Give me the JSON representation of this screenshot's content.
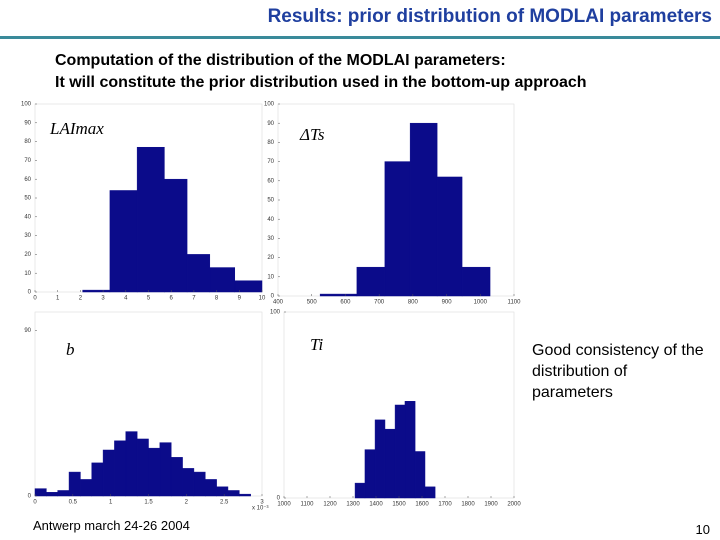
{
  "slide": {
    "title": "Results: prior distribution of MODLAI parameters",
    "subtitle_lines": [
      "Computation of the distribution of the MODLAI parameters:",
      "It will constitute the prior distribution used in the bottom-up approach"
    ],
    "note": "Good consistency of the distribution of parameters",
    "footer": "Antwerp march 24-26 2004",
    "page_number": "10"
  },
  "chart_data": [
    {
      "type": "histogram",
      "annotation": "LAImax",
      "color": "#0b0b8a",
      "bins": [
        2.1,
        3.3,
        4.5,
        5.7,
        6.7,
        7.7,
        8.8,
        10
      ],
      "values": [
        1,
        54,
        77,
        60,
        20,
        13,
        6
      ],
      "xlim": [
        0,
        10
      ],
      "xticks": [
        0,
        1,
        2,
        3,
        4,
        5,
        6,
        7,
        8,
        9,
        10
      ],
      "ylim": [
        0,
        100
      ],
      "yticks": [
        0,
        10,
        20,
        30,
        40,
        50,
        60,
        70,
        80,
        90,
        100
      ]
    },
    {
      "type": "histogram",
      "annotation": "ΔTs",
      "color": "#0b0b8a",
      "bins": [
        525,
        634,
        717,
        792,
        872,
        946,
        1029
      ],
      "values": [
        1,
        15,
        70,
        90,
        62,
        15
      ],
      "xlim": [
        400,
        1100
      ],
      "xticks": [
        400,
        500,
        600,
        700,
        800,
        900,
        1000,
        1100
      ],
      "ylim": [
        0,
        100
      ],
      "yticks": [
        0,
        10,
        20,
        30,
        40,
        50,
        60,
        70,
        80,
        90,
        100
      ]
    },
    {
      "type": "histogram",
      "annotation": "b",
      "color": "#0b0b8a",
      "x_scale_label": "x 10⁻³",
      "bins": [
        0,
        0.15,
        0.3,
        0.45,
        0.6,
        0.75,
        0.9,
        1.05,
        1.2,
        1.35,
        1.5,
        1.65,
        1.8,
        1.95,
        2.1,
        2.25,
        2.4,
        2.55,
        2.7,
        2.85
      ],
      "values": [
        4,
        2,
        3,
        13,
        9,
        18,
        25,
        30,
        35,
        31,
        26,
        29,
        21,
        15,
        13,
        9,
        5,
        3,
        1
      ],
      "xlim": [
        0,
        3
      ],
      "xticks": [
        0,
        0.5,
        1,
        1.5,
        2,
        2.5,
        3
      ],
      "ylim": [
        0,
        100
      ],
      "yticks": [
        0,
        90
      ]
    },
    {
      "type": "histogram",
      "annotation": "Ti",
      "color": "#0b0b8a",
      "bins": [
        1309,
        1352,
        1396,
        1439,
        1483,
        1526,
        1570,
        1613,
        1657
      ],
      "values": [
        8,
        26,
        42,
        37,
        50,
        52,
        25,
        6
      ],
      "xlim": [
        1000,
        2000
      ],
      "xticks": [
        1000,
        1100,
        1200,
        1300,
        1400,
        1500,
        1600,
        1700,
        1800,
        1900,
        2000
      ],
      "ylim": [
        0,
        100
      ],
      "yticks": [
        0,
        100
      ]
    }
  ]
}
